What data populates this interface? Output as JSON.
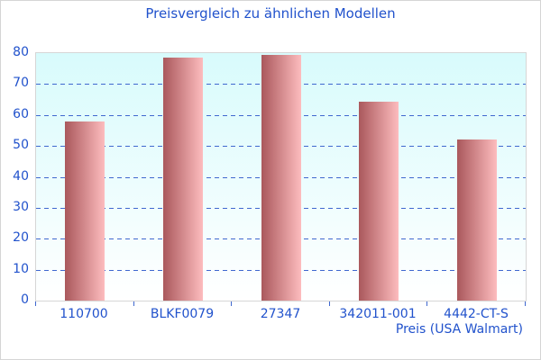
{
  "chart_data": {
    "type": "bar",
    "title": "Preisvergleich zu ähnlichen Modellen",
    "categories": [
      "110700",
      "BLKF0079",
      "27347",
      "342011-001",
      "4442-CT-S"
    ],
    "values": [
      58,
      78.5,
      79.4,
      64.4,
      52
    ],
    "xlabel": "Preis (USA Walmart)",
    "ylabel": "",
    "ylim": [
      0,
      80
    ],
    "yticks": [
      0,
      10,
      20,
      30,
      40,
      50,
      60,
      70,
      80
    ],
    "grid": {
      "horizontal": true,
      "style": "dashed"
    },
    "legend_position": "none",
    "colors": {
      "text": "#2152cc",
      "gridline": "#3f68cf",
      "plot_border": "#d6d6d6",
      "plot_bg_top": "#d8fbfc",
      "plot_bg_bottom": "#ffffff",
      "bar_gradient_left": "#aa585c",
      "bar_gradient_right": "#fdbcbe"
    }
  }
}
